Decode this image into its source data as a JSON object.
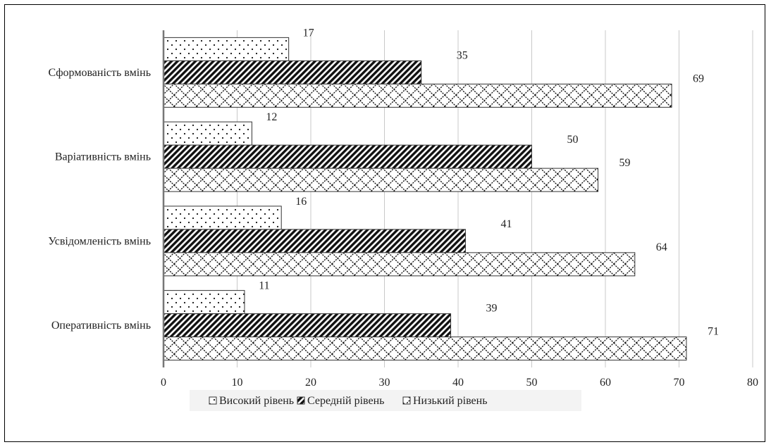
{
  "chart_data": {
    "type": "bar",
    "orientation": "horizontal",
    "title": "",
    "xlabel": "",
    "ylabel": "",
    "categories": [
      "Оперативність вмінь",
      "Усвідомленість вмінь",
      "Варіативність вмінь",
      "Сформованість вмінь"
    ],
    "series": [
      {
        "name": "Високий рівень",
        "values": [
          11,
          16,
          12,
          17
        ],
        "pattern": "dots"
      },
      {
        "name": "Середній рівень",
        "values": [
          39,
          41,
          50,
          35
        ],
        "pattern": "diagonal"
      },
      {
        "name": "Низький рівень",
        "values": [
          71,
          64,
          59,
          69
        ],
        "pattern": "zigzag"
      }
    ],
    "xlim": [
      0,
      80
    ],
    "xticks": [
      0,
      10,
      20,
      30,
      40,
      50,
      60,
      70,
      80
    ],
    "grid": true,
    "legend_position": "bottom",
    "data_labels": true
  },
  "colors": {
    "bar_outline": "#333333",
    "grid": "#c8c8c8",
    "axis": "#777777",
    "pattern_ink": "#111111",
    "background": "#ffffff"
  }
}
